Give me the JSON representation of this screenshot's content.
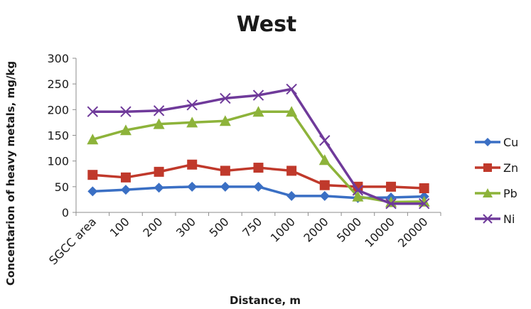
{
  "chart_data": {
    "type": "line",
    "title": "West",
    "xlabel": "Distance, m",
    "ylabel": "Concentarion of heavy metals, mg/kg",
    "categories": [
      "SGCC area",
      "100",
      "200",
      "300",
      "500",
      "750",
      "1000",
      "2000",
      "5000",
      "10000",
      "20000"
    ],
    "ylim": [
      0,
      300
    ],
    "yticks": [
      0,
      50,
      100,
      150,
      200,
      250,
      300
    ],
    "grid": false,
    "legend_position": "right",
    "series": [
      {
        "name": "Cu",
        "color": "#3a6fc4",
        "marker": "diamond",
        "values": [
          41,
          44,
          48,
          50,
          50,
          50,
          32,
          32,
          28,
          29,
          31
        ]
      },
      {
        "name": "Zn",
        "color": "#c0392b",
        "marker": "square",
        "values": [
          73,
          68,
          79,
          93,
          81,
          87,
          81,
          53,
          50,
          50,
          47
        ]
      },
      {
        "name": "Pb",
        "color": "#8db33a",
        "marker": "triangle",
        "values": [
          142,
          160,
          172,
          175,
          178,
          196,
          196,
          102,
          31,
          20,
          21
        ]
      },
      {
        "name": "Ni",
        "color": "#6f3a9a",
        "marker": "x",
        "values": [
          196,
          196,
          198,
          209,
          222,
          228,
          240,
          140,
          43,
          17,
          17
        ]
      }
    ]
  }
}
